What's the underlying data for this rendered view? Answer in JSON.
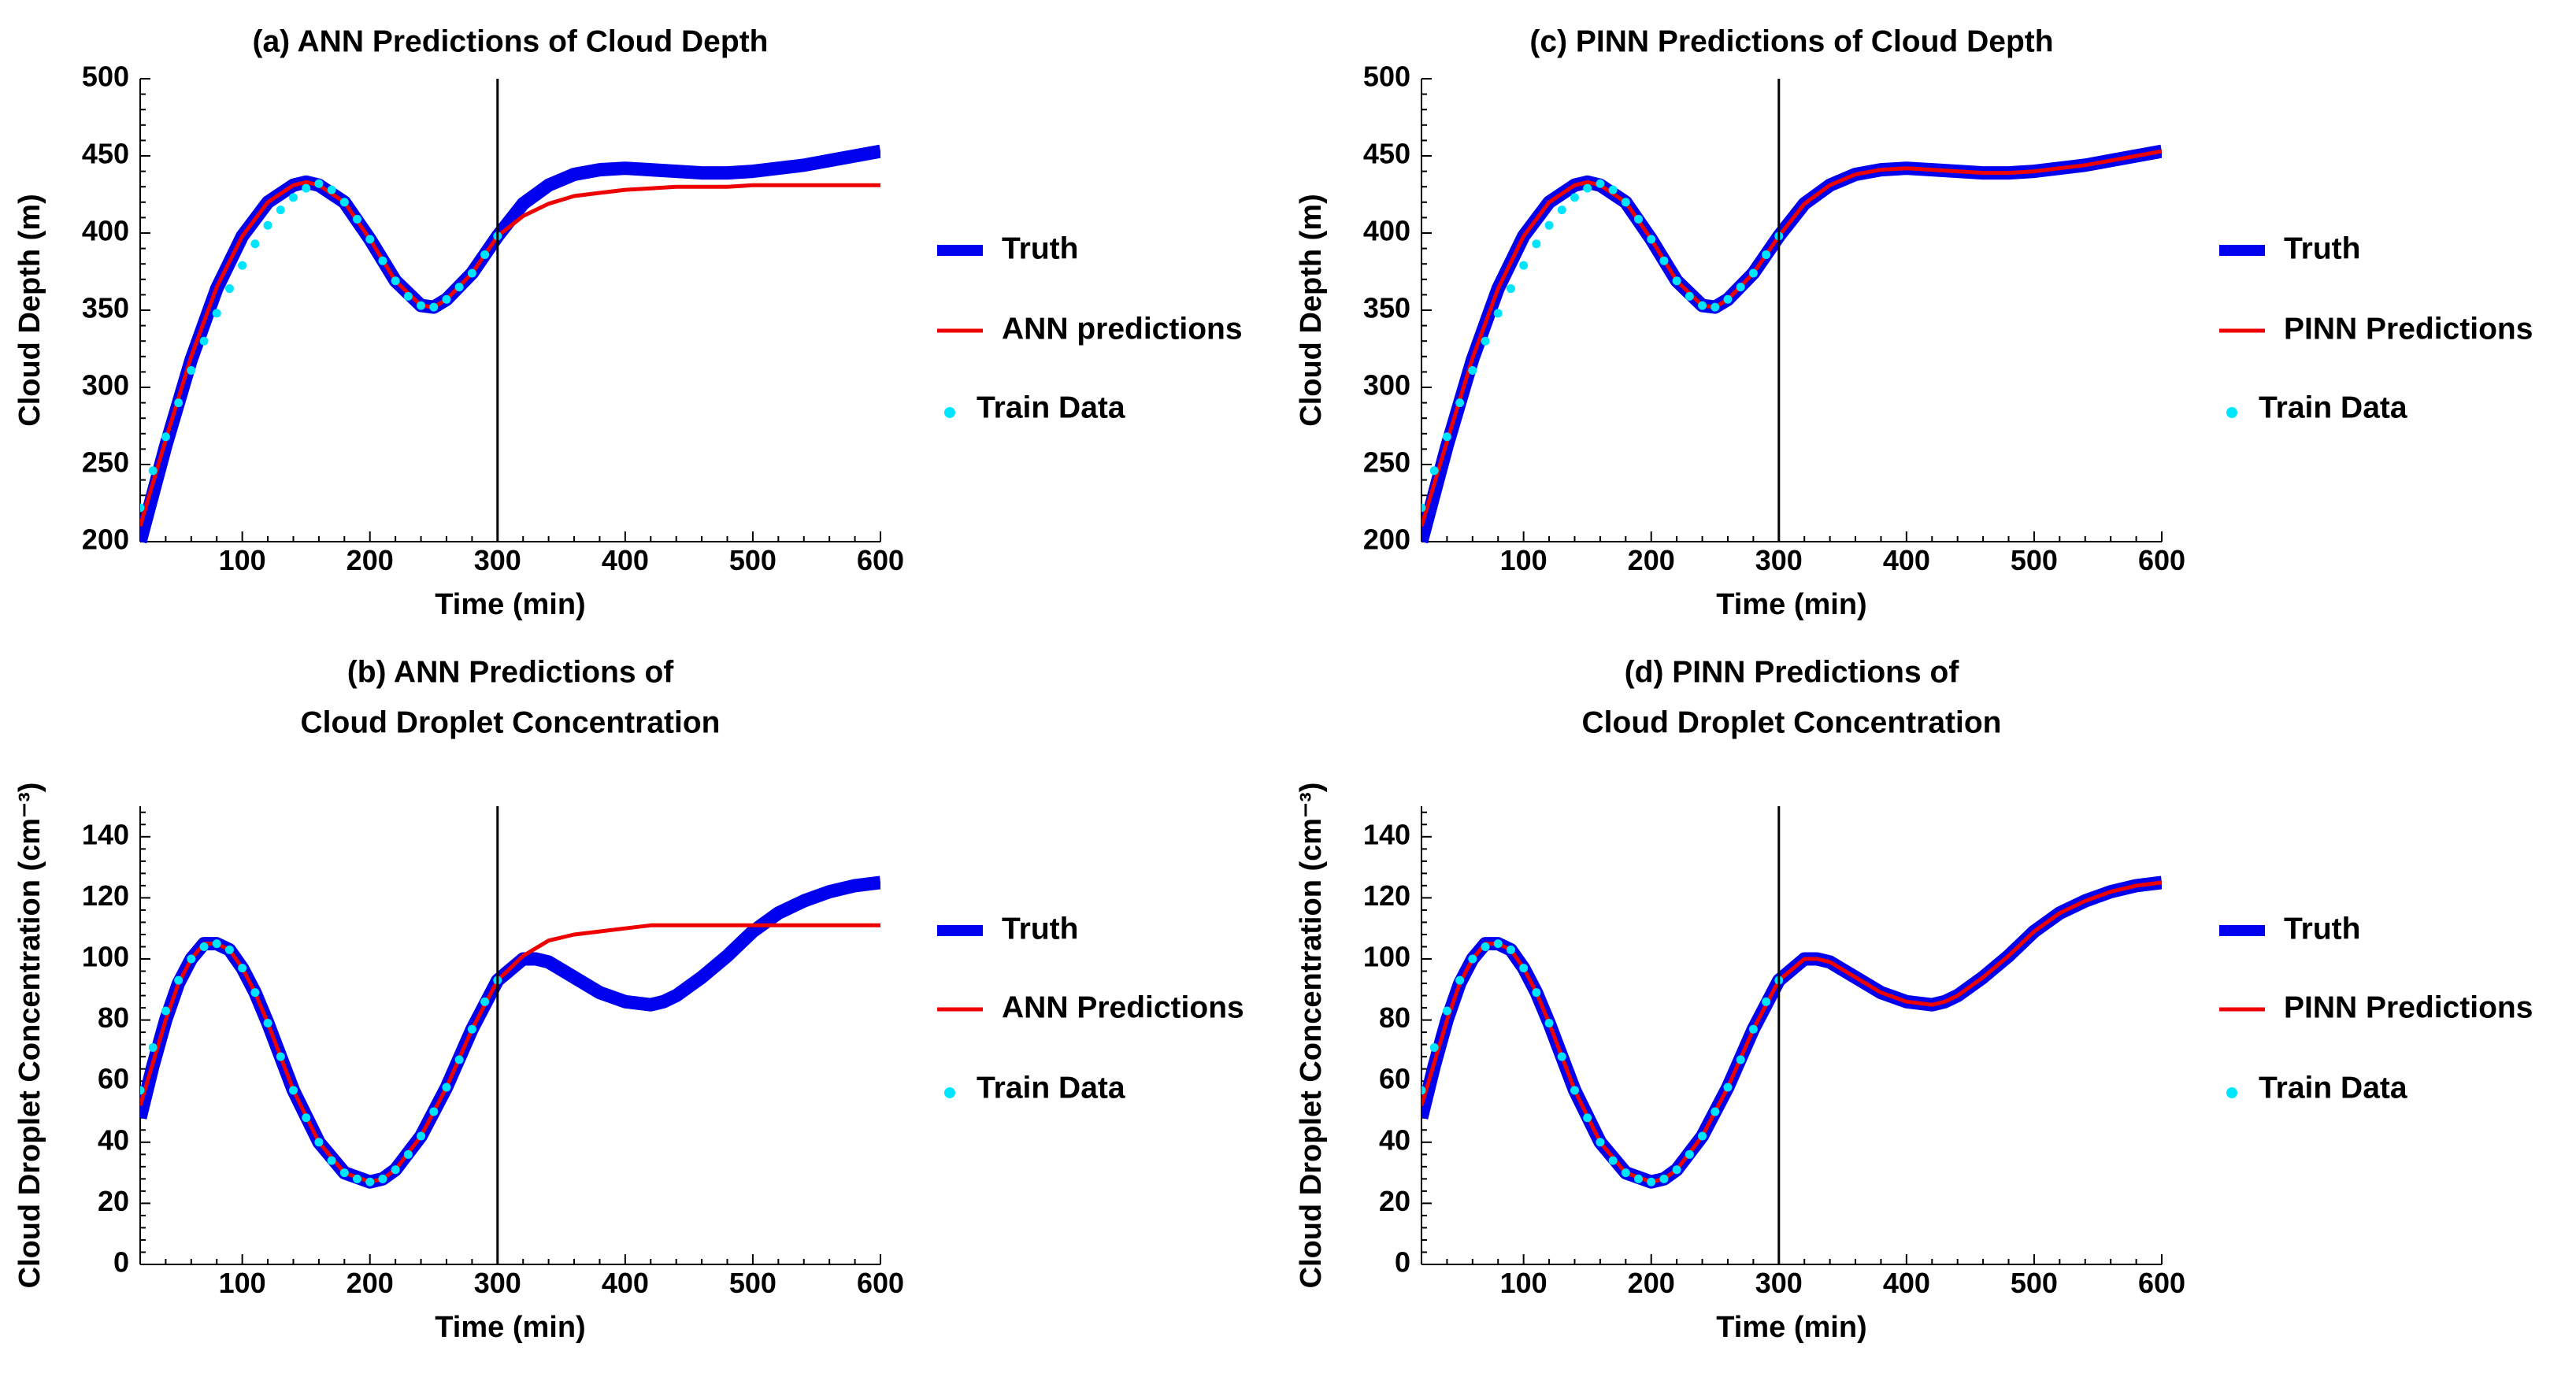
{
  "colors": {
    "truth": "#0000ee",
    "prediction": "#ee0000",
    "train": "#00e5ff",
    "axis": "#000000",
    "split_line": "#000000"
  },
  "chart_data": [
    {
      "id": "a",
      "type": "line",
      "title": "(a) ANN Predictions of Cloud Depth",
      "xlabel": "Time (min)",
      "ylabel": "Cloud Depth (m)",
      "xlim": [
        20,
        600
      ],
      "ylim": [
        200,
        500
      ],
      "xticks": [
        100,
        200,
        300,
        400,
        500,
        600
      ],
      "yticks": [
        200,
        250,
        300,
        350,
        400,
        450,
        500
      ],
      "split_x": 300,
      "legend": {
        "position": "right",
        "entries": [
          "Truth",
          "ANN predictions",
          "Train Data"
        ]
      },
      "series": [
        {
          "name": "Truth",
          "role": "truth",
          "x": [
            20,
            40,
            60,
            80,
            100,
            120,
            140,
            150,
            160,
            180,
            200,
            220,
            240,
            250,
            260,
            280,
            300,
            320,
            340,
            360,
            380,
            400,
            420,
            440,
            460,
            480,
            500,
            520,
            540,
            560,
            580,
            600
          ],
          "y": [
            200,
            262,
            318,
            364,
            398,
            420,
            431,
            433,
            431,
            420,
            396,
            369,
            353,
            352,
            357,
            374,
            398,
            419,
            431,
            438,
            441,
            442,
            441,
            440,
            439,
            439,
            440,
            442,
            444,
            447,
            450,
            453
          ]
        },
        {
          "name": "ANN predictions",
          "role": "prediction",
          "x": [
            20,
            40,
            60,
            80,
            100,
            120,
            140,
            150,
            160,
            180,
            200,
            220,
            240,
            250,
            260,
            280,
            300,
            320,
            340,
            360,
            380,
            400,
            420,
            440,
            460,
            480,
            500,
            520,
            540,
            560,
            580,
            600
          ],
          "y": [
            210,
            266,
            320,
            365,
            398,
            420,
            431,
            433,
            431,
            420,
            396,
            369,
            353,
            352,
            357,
            374,
            398,
            411,
            419,
            424,
            426,
            428,
            429,
            430,
            430,
            430,
            431,
            431,
            431,
            431,
            431,
            431
          ]
        },
        {
          "name": "Train Data",
          "role": "train",
          "x": [
            20,
            30,
            40,
            50,
            60,
            70,
            80,
            90,
            100,
            110,
            120,
            130,
            140,
            150,
            160,
            170,
            180,
            190,
            200,
            210,
            220,
            230,
            240,
            250,
            260,
            270,
            280,
            290,
            300
          ],
          "y": [
            222,
            246,
            268,
            290,
            311,
            330,
            348,
            364,
            379,
            393,
            405,
            415,
            423,
            429,
            432,
            428,
            420,
            409,
            396,
            382,
            369,
            359,
            353,
            352,
            357,
            365,
            374,
            386,
            398
          ]
        }
      ]
    },
    {
      "id": "b",
      "type": "line",
      "title": [
        "(b) ANN Predictions of",
        "Cloud Droplet Concentration"
      ],
      "xlabel": "Time (min)",
      "ylabel": "Cloud Droplet Concentration (cm⁻³)",
      "xlim": [
        20,
        600
      ],
      "ylim": [
        0,
        150
      ],
      "xticks": [
        100,
        200,
        300,
        400,
        500,
        600
      ],
      "yticks": [
        0,
        20,
        40,
        60,
        80,
        100,
        120,
        140
      ],
      "split_x": 300,
      "legend": {
        "position": "right",
        "entries": [
          "Truth",
          "ANN Predictions",
          "Train Data"
        ]
      },
      "series": [
        {
          "name": "Truth",
          "role": "truth",
          "x": [
            20,
            30,
            40,
            50,
            60,
            70,
            80,
            90,
            100,
            110,
            120,
            140,
            160,
            180,
            200,
            210,
            220,
            240,
            260,
            280,
            300,
            320,
            330,
            340,
            360,
            380,
            400,
            420,
            430,
            440,
            460,
            480,
            500,
            520,
            540,
            560,
            580,
            600
          ],
          "y": [
            48,
            65,
            80,
            92,
            100,
            105,
            105,
            103,
            97,
            89,
            79,
            57,
            40,
            30,
            27,
            28,
            31,
            42,
            58,
            77,
            93,
            100,
            100,
            99,
            94,
            89,
            86,
            85,
            86,
            88,
            94,
            101,
            109,
            115,
            119,
            122,
            124,
            125
          ]
        },
        {
          "name": "ANN Predictions",
          "role": "prediction",
          "x": [
            20,
            30,
            40,
            50,
            60,
            70,
            80,
            90,
            100,
            110,
            120,
            140,
            160,
            180,
            200,
            210,
            220,
            240,
            260,
            280,
            300,
            320,
            340,
            360,
            380,
            400,
            420,
            440,
            460,
            480,
            500,
            520,
            540,
            560,
            580,
            600
          ],
          "y": [
            52,
            66,
            80,
            92,
            100,
            105,
            105,
            103,
            97,
            89,
            79,
            57,
            40,
            30,
            27,
            28,
            31,
            42,
            58,
            77,
            93,
            101,
            106,
            108,
            109,
            110,
            111,
            111,
            111,
            111,
            111,
            111,
            111,
            111,
            111,
            111
          ]
        },
        {
          "name": "Train Data",
          "role": "train",
          "x": [
            20,
            30,
            40,
            50,
            60,
            70,
            80,
            90,
            100,
            110,
            120,
            130,
            140,
            150,
            160,
            170,
            180,
            190,
            200,
            210,
            220,
            230,
            240,
            250,
            260,
            270,
            280,
            290,
            300
          ],
          "y": [
            57,
            71,
            83,
            93,
            100,
            104,
            105,
            103,
            97,
            89,
            79,
            68,
            57,
            48,
            40,
            34,
            30,
            28,
            27,
            28,
            31,
            36,
            42,
            50,
            58,
            67,
            77,
            86,
            93
          ]
        }
      ]
    },
    {
      "id": "c",
      "type": "line",
      "title": "(c) PINN Predictions of Cloud Depth",
      "xlabel": "Time (min)",
      "ylabel": "Cloud Depth (m)",
      "xlim": [
        20,
        600
      ],
      "ylim": [
        200,
        500
      ],
      "xticks": [
        100,
        200,
        300,
        400,
        500,
        600
      ],
      "yticks": [
        200,
        250,
        300,
        350,
        400,
        450,
        500
      ],
      "split_x": 300,
      "legend": {
        "position": "right",
        "entries": [
          "Truth",
          "PINN Predictions",
          "Train Data"
        ]
      },
      "series": [
        {
          "name": "Truth",
          "role": "truth",
          "x": [
            20,
            40,
            60,
            80,
            100,
            120,
            140,
            150,
            160,
            180,
            200,
            220,
            240,
            250,
            260,
            280,
            300,
            320,
            340,
            360,
            380,
            400,
            420,
            440,
            460,
            480,
            500,
            520,
            540,
            560,
            580,
            600
          ],
          "y": [
            200,
            262,
            318,
            364,
            398,
            420,
            431,
            433,
            431,
            420,
            396,
            369,
            353,
            352,
            357,
            374,
            398,
            419,
            431,
            438,
            441,
            442,
            441,
            440,
            439,
            439,
            440,
            442,
            444,
            447,
            450,
            453
          ]
        },
        {
          "name": "PINN Predictions",
          "role": "prediction",
          "x": [
            20,
            40,
            60,
            80,
            100,
            120,
            140,
            150,
            160,
            180,
            200,
            220,
            240,
            250,
            260,
            280,
            300,
            320,
            340,
            360,
            380,
            400,
            420,
            440,
            460,
            480,
            500,
            520,
            540,
            560,
            580,
            600
          ],
          "y": [
            210,
            265,
            319,
            364,
            398,
            420,
            431,
            433,
            431,
            420,
            396,
            369,
            353,
            352,
            357,
            374,
            398,
            419,
            431,
            438,
            441,
            442,
            441,
            440,
            439,
            439,
            440,
            442,
            444,
            447,
            450,
            453
          ]
        },
        {
          "name": "Train Data",
          "role": "train",
          "x": [
            20,
            30,
            40,
            50,
            60,
            70,
            80,
            90,
            100,
            110,
            120,
            130,
            140,
            150,
            160,
            170,
            180,
            190,
            200,
            210,
            220,
            230,
            240,
            250,
            260,
            270,
            280,
            290,
            300
          ],
          "y": [
            222,
            246,
            268,
            290,
            311,
            330,
            348,
            364,
            379,
            393,
            405,
            415,
            423,
            429,
            432,
            428,
            420,
            409,
            396,
            382,
            369,
            359,
            353,
            352,
            357,
            365,
            374,
            386,
            398
          ]
        }
      ]
    },
    {
      "id": "d",
      "type": "line",
      "title": [
        "(d) PINN Predictions of",
        "Cloud Droplet Concentration"
      ],
      "xlabel": "Time (min)",
      "ylabel": "Cloud Droplet Concentration (cm⁻³)",
      "xlim": [
        20,
        600
      ],
      "ylim": [
        0,
        150
      ],
      "xticks": [
        100,
        200,
        300,
        400,
        500,
        600
      ],
      "yticks": [
        0,
        20,
        40,
        60,
        80,
        100,
        120,
        140
      ],
      "split_x": 300,
      "legend": {
        "position": "right",
        "entries": [
          "Truth",
          "PINN Predictions",
          "Train Data"
        ]
      },
      "series": [
        {
          "name": "Truth",
          "role": "truth",
          "x": [
            20,
            30,
            40,
            50,
            60,
            70,
            80,
            90,
            100,
            110,
            120,
            140,
            160,
            180,
            200,
            210,
            220,
            240,
            260,
            280,
            300,
            320,
            330,
            340,
            360,
            380,
            400,
            420,
            430,
            440,
            460,
            480,
            500,
            520,
            540,
            560,
            580,
            600
          ],
          "y": [
            48,
            65,
            80,
            92,
            100,
            105,
            105,
            103,
            97,
            89,
            79,
            57,
            40,
            30,
            27,
            28,
            31,
            42,
            58,
            77,
            93,
            100,
            100,
            99,
            94,
            89,
            86,
            85,
            86,
            88,
            94,
            101,
            109,
            115,
            119,
            122,
            124,
            125
          ]
        },
        {
          "name": "PINN Predictions",
          "role": "prediction",
          "x": [
            20,
            30,
            40,
            50,
            60,
            70,
            80,
            90,
            100,
            110,
            120,
            140,
            160,
            180,
            200,
            210,
            220,
            240,
            260,
            280,
            300,
            320,
            330,
            340,
            360,
            380,
            400,
            420,
            430,
            440,
            460,
            480,
            500,
            520,
            540,
            560,
            580,
            600
          ],
          "y": [
            52,
            66,
            80,
            92,
            100,
            105,
            105,
            103,
            97,
            89,
            79,
            57,
            40,
            30,
            27,
            28,
            31,
            42,
            58,
            77,
            93,
            100,
            100,
            99,
            94,
            89,
            86,
            85,
            86,
            88,
            94,
            101,
            109,
            115,
            119,
            122,
            124,
            125
          ]
        },
        {
          "name": "Train Data",
          "role": "train",
          "x": [
            20,
            30,
            40,
            50,
            60,
            70,
            80,
            90,
            100,
            110,
            120,
            130,
            140,
            150,
            160,
            170,
            180,
            190,
            200,
            210,
            220,
            230,
            240,
            250,
            260,
            270,
            280,
            290,
            300
          ],
          "y": [
            57,
            71,
            83,
            93,
            100,
            104,
            105,
            103,
            97,
            89,
            79,
            68,
            57,
            48,
            40,
            34,
            30,
            28,
            27,
            28,
            31,
            36,
            42,
            50,
            58,
            67,
            77,
            86,
            93
          ]
        }
      ]
    }
  ]
}
